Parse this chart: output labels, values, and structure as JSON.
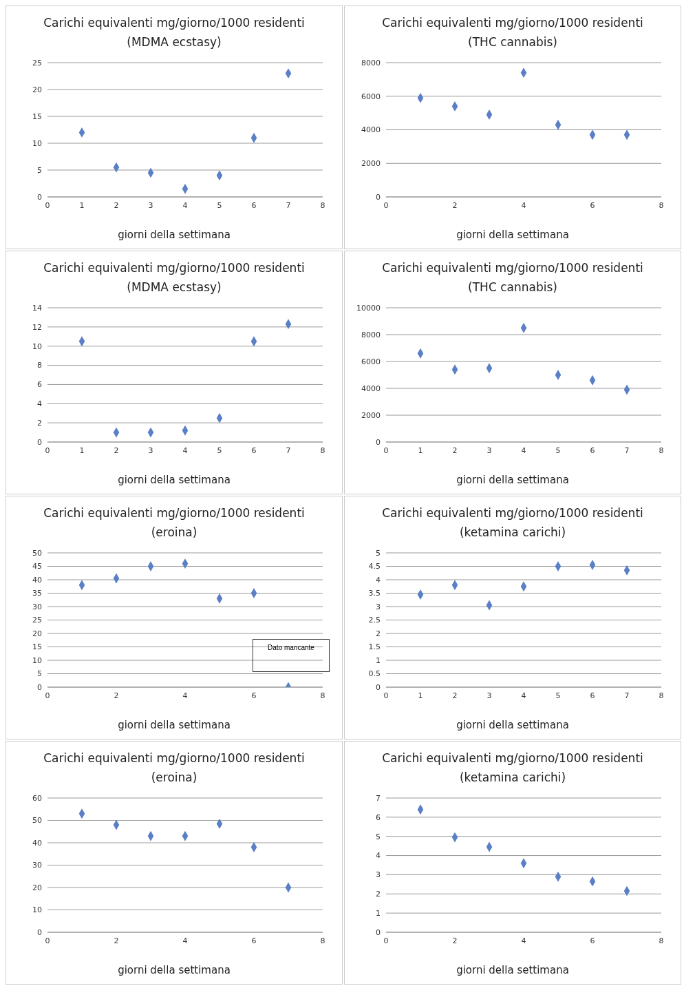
{
  "chart_data": [
    {
      "type": "scatter",
      "title": "Carichi equivalenti mg/giorno/1000 residenti (MDMA ecstasy)",
      "xlabel": "giorni della settimana",
      "x": [
        1,
        2,
        3,
        4,
        5,
        6,
        7
      ],
      "values": [
        12,
        5.5,
        4.5,
        1.5,
        4,
        11,
        23
      ],
      "color": "#5b7fc7",
      "xlim": [
        0,
        8
      ],
      "xticks": [
        0,
        1,
        2,
        3,
        4,
        5,
        6,
        7,
        8
      ],
      "ylim": [
        0,
        25
      ],
      "yticks": [
        0,
        5,
        10,
        15,
        20,
        25
      ],
      "grid": "y",
      "marker": "diamond",
      "legend": false
    },
    {
      "type": "scatter",
      "title": "Carichi equivalenti mg/giorno/1000 residenti (THC cannabis)",
      "xlabel": "giorni della settimana",
      "x": [
        1,
        2,
        3,
        4,
        5,
        6,
        7
      ],
      "values": [
        5900,
        5400,
        4900,
        7400,
        4300,
        3700,
        3700
      ],
      "color": "#5b7fc7",
      "xlim": [
        0,
        8
      ],
      "xticks": [
        0,
        2,
        4,
        6,
        8
      ],
      "ylim": [
        0,
        8000
      ],
      "yticks": [
        0,
        2000,
        4000,
        6000,
        8000
      ],
      "grid": "y",
      "marker": "diamond",
      "legend": false
    },
    {
      "type": "scatter",
      "title": "Carichi equivalenti mg/giorno/1000 residenti (MDMA ecstasy)",
      "xlabel": "giorni della settimana",
      "x": [
        1,
        2,
        3,
        4,
        5,
        6,
        7
      ],
      "values": [
        10.5,
        1,
        1,
        1.2,
        2.5,
        10.5,
        12.3
      ],
      "color": "#5b7fc7",
      "xlim": [
        0,
        8
      ],
      "xticks": [
        0,
        1,
        2,
        3,
        4,
        5,
        6,
        7,
        8
      ],
      "ylim": [
        0,
        14
      ],
      "yticks": [
        0,
        2,
        4,
        6,
        8,
        10,
        12,
        14
      ],
      "grid": "y",
      "marker": "diamond",
      "legend": false
    },
    {
      "type": "scatter",
      "title": "Carichi equivalenti mg/giorno/1000 residenti (THC cannabis)",
      "xlabel": "giorni della settimana",
      "x": [
        1,
        2,
        3,
        4,
        5,
        6,
        7
      ],
      "values": [
        6600,
        5400,
        5500,
        8500,
        5000,
        4600,
        3900
      ],
      "color": "#5b7fc7",
      "xlim": [
        0,
        8
      ],
      "xticks": [
        0,
        1,
        2,
        3,
        4,
        5,
        6,
        7,
        8
      ],
      "ylim": [
        0,
        10000
      ],
      "yticks": [
        0,
        2000,
        4000,
        6000,
        8000,
        10000
      ],
      "grid": "y",
      "marker": "diamond",
      "legend": false
    },
    {
      "type": "scatter",
      "title": "Carichi equivalenti mg/giorno/1000 residenti (eroina)",
      "xlabel": "giorni della settimana",
      "x": [
        1,
        2,
        3,
        4,
        5,
        6,
        7
      ],
      "values": [
        38,
        40.5,
        45,
        46,
        33,
        35,
        0
      ],
      "color": "#5b7fc7",
      "xlim": [
        0,
        8
      ],
      "xticks": [
        0,
        2,
        4,
        6,
        8
      ],
      "ylim": [
        0,
        50
      ],
      "yticks": [
        0,
        5,
        10,
        15,
        20,
        25,
        30,
        35,
        40,
        45,
        50
      ],
      "grid": "y",
      "marker": "diamond",
      "legend": false,
      "annotations": [
        "Dato mancante"
      ]
    },
    {
      "type": "scatter",
      "title": "Carichi equivalenti mg/giorno/1000 residenti (ketamina carichi)",
      "xlabel": "giorni della settimana",
      "x": [
        1,
        2,
        3,
        4,
        5,
        6,
        7
      ],
      "values": [
        3.45,
        3.8,
        3.05,
        3.75,
        4.5,
        4.55,
        4.35
      ],
      "color": "#5b7fc7",
      "xlim": [
        0,
        8
      ],
      "xticks": [
        0,
        1,
        2,
        3,
        4,
        5,
        6,
        7,
        8
      ],
      "ylim": [
        0,
        5
      ],
      "yticks": [
        0,
        0.5,
        1,
        1.5,
        2,
        2.5,
        3,
        3.5,
        4,
        4.5,
        5
      ],
      "grid": "y",
      "marker": "diamond",
      "legend": false
    },
    {
      "type": "scatter",
      "title": "Carichi equivalenti mg/giorno/1000 residenti (eroina)",
      "xlabel": "giorni della settimana",
      "x": [
        1,
        2,
        3,
        4,
        5,
        6,
        7
      ],
      "values": [
        53,
        48,
        43,
        43,
        48.5,
        38,
        20
      ],
      "color": "#5b7fc7",
      "xlim": [
        0,
        8
      ],
      "xticks": [
        0,
        2,
        4,
        6,
        8
      ],
      "ylim": [
        0,
        60
      ],
      "yticks": [
        0,
        10,
        20,
        30,
        40,
        50,
        60
      ],
      "grid": "y",
      "marker": "diamond",
      "legend": false
    },
    {
      "type": "scatter",
      "title": "Carichi equivalenti mg/giorno/1000 residenti (ketamina carichi)",
      "xlabel": "giorni della settimana",
      "x": [
        1,
        2,
        3,
        4,
        5,
        6,
        7
      ],
      "values": [
        6.4,
        4.95,
        4.45,
        3.6,
        2.9,
        2.65,
        2.15
      ],
      "color": "#5b7fc7",
      "xlim": [
        0,
        8
      ],
      "xticks": [
        0,
        2,
        4,
        6,
        8
      ],
      "ylim": [
        0,
        7
      ],
      "yticks": [
        0,
        1,
        2,
        3,
        4,
        5,
        6,
        7
      ],
      "grid": "y",
      "marker": "diamond",
      "legend": false
    }
  ]
}
